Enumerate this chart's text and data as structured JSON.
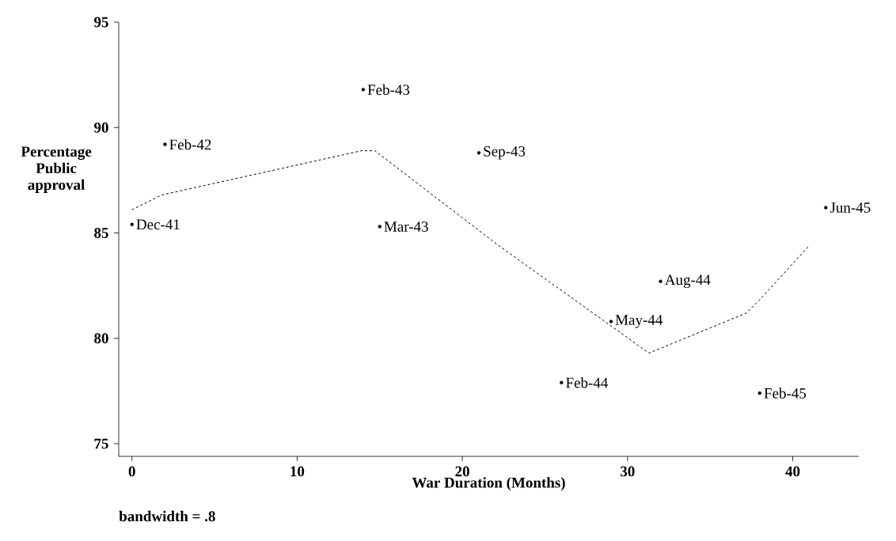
{
  "chart_data": {
    "type": "line",
    "xlabel": "War Duration (Months)",
    "ylabel": "Percentage Public approval",
    "x": [
      0,
      1.8,
      13.9,
      14.7,
      22.2,
      31.3,
      37.2,
      38.2,
      41.0
    ],
    "series": [
      {
        "color": "#000000",
        "values": [
          86.1,
          86.8,
          88.9,
          88.9,
          84.4,
          79.3,
          81.2,
          82.0,
          84.4
        ]
      },
      {
        "type": "scatter",
        "color": "#000000",
        "x": [
          0,
          2,
          14,
          15,
          21,
          26,
          29,
          32,
          38,
          42
        ],
        "values": [
          85.4,
          89.2,
          91.8,
          85.3,
          88.8,
          77.9,
          80.8,
          82.7,
          77.4,
          86.2
        ],
        "value_labels": [
          "Dec-41",
          "Feb-42",
          "Feb-43",
          "Mar-43",
          "Sep-43",
          "Feb-44",
          "May-44",
          "Aug-44",
          "Feb-45",
          "Jun-45"
        ]
      }
    ],
    "xlim": [
      -0.8,
      44
    ],
    "ylim": [
      74.4,
      95
    ],
    "xticks": [
      0,
      10,
      20,
      30,
      40
    ],
    "yticks": [
      75,
      80,
      85,
      90,
      95
    ],
    "grid": false,
    "legend": false,
    "marker": "none",
    "line_style": "dashed",
    "annotations": [
      "bandwidth = .8"
    ]
  }
}
